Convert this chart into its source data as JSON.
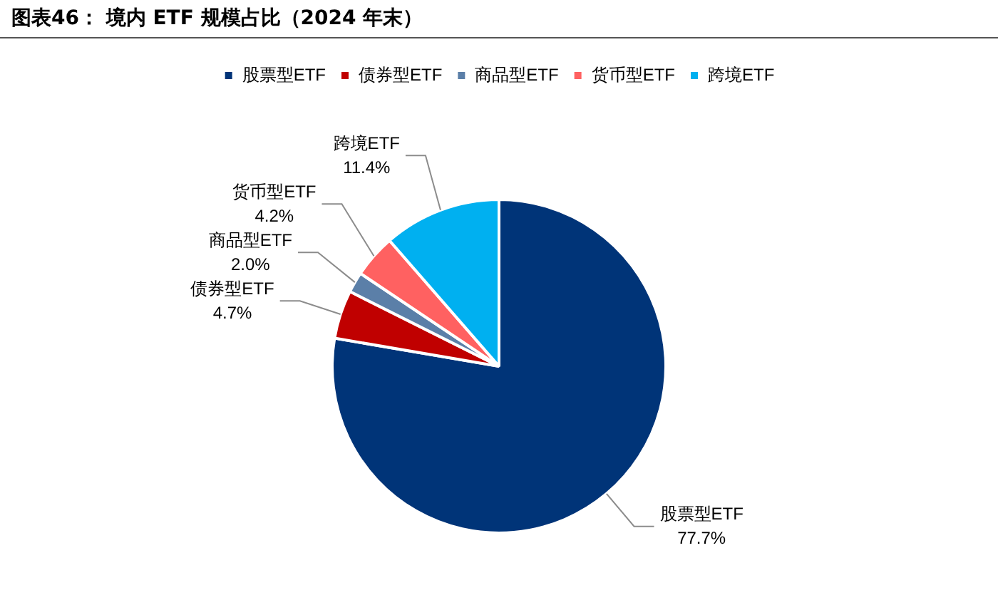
{
  "chart_data": {
    "type": "pie",
    "title": "图表46：  境内 ETF 规模占比（2024 年末）",
    "categories": [
      "股票型ETF",
      "债券型ETF",
      "商品型ETF",
      "货币型ETF",
      "跨境ETF"
    ],
    "values": [
      77.7,
      4.7,
      2.0,
      4.2,
      11.4
    ],
    "colors": [
      "#003478",
      "#c00000",
      "#5b7fa8",
      "#ff6161",
      "#00b0f0"
    ],
    "value_labels": [
      "77.7%",
      "4.7%",
      "2.0%",
      "4.2%",
      "11.4%"
    ],
    "legend": "top"
  }
}
